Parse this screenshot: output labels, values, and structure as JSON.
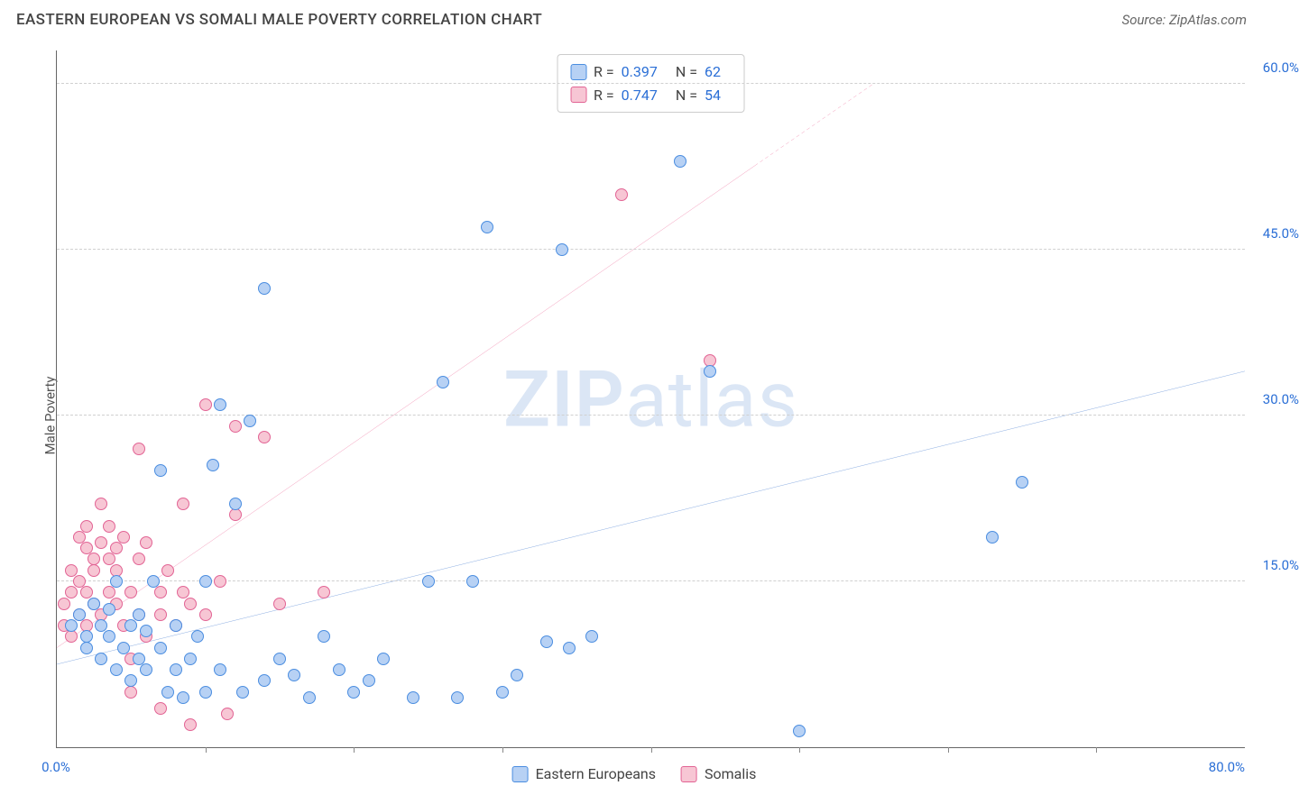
{
  "header": {
    "title": "EASTERN EUROPEAN VS SOMALI MALE POVERTY CORRELATION CHART",
    "source": "Source: ZipAtlas.com"
  },
  "axes": {
    "ylabel": "Male Poverty",
    "x_min": 0,
    "x_max": 80,
    "y_min": 0,
    "y_max": 63,
    "x_start_label": "0.0%",
    "x_end_label": "80.0%",
    "y_grid": [
      15,
      30,
      45,
      60
    ],
    "y_labels": [
      "15.0%",
      "30.0%",
      "45.0%",
      "60.0%"
    ],
    "x_ticks": [
      10,
      20,
      30,
      40,
      50,
      60,
      70
    ],
    "label_color": "#2b6fd6",
    "label_fontsize": 15
  },
  "watermark": {
    "text_bold": "ZIP",
    "text_light": "atlas",
    "color": "#dbe6f5"
  },
  "series": {
    "eastern_europeans": {
      "label": "Eastern Europeans",
      "color_fill": "#b7d1f4",
      "color_stroke": "#4a8de0",
      "marker_radius": 7,
      "stats": {
        "R": "0.397",
        "N": "62"
      },
      "trend": {
        "x1": 0,
        "y1": 7.5,
        "x2": 80,
        "y2": 34,
        "color": "#1d5fc7",
        "width": 2
      },
      "points": [
        [
          1,
          11
        ],
        [
          1.5,
          12
        ],
        [
          2,
          10
        ],
        [
          2,
          9
        ],
        [
          2.5,
          13
        ],
        [
          3,
          11
        ],
        [
          3,
          8
        ],
        [
          3.5,
          10
        ],
        [
          3.5,
          12.5
        ],
        [
          4,
          15
        ],
        [
          4,
          7
        ],
        [
          4.5,
          9
        ],
        [
          5,
          11
        ],
        [
          5,
          6
        ],
        [
          5.5,
          12
        ],
        [
          5.5,
          8
        ],
        [
          6,
          10.5
        ],
        [
          6,
          7
        ],
        [
          6.5,
          15
        ],
        [
          7,
          25
        ],
        [
          7,
          9
        ],
        [
          7.5,
          5
        ],
        [
          8,
          11
        ],
        [
          8,
          7
        ],
        [
          8.5,
          4.5
        ],
        [
          9,
          8
        ],
        [
          9.5,
          10
        ],
        [
          10,
          15
        ],
        [
          10,
          5
        ],
        [
          10.5,
          25.5
        ],
        [
          11,
          31
        ],
        [
          11,
          7
        ],
        [
          12,
          22
        ],
        [
          12.5,
          5
        ],
        [
          13,
          29.5
        ],
        [
          14,
          6
        ],
        [
          14,
          41.5
        ],
        [
          15,
          8
        ],
        [
          16,
          6.5
        ],
        [
          17,
          4.5
        ],
        [
          18,
          10
        ],
        [
          19,
          7
        ],
        [
          20,
          5
        ],
        [
          21,
          6
        ],
        [
          22,
          8
        ],
        [
          24,
          4.5
        ],
        [
          25,
          15
        ],
        [
          26,
          33
        ],
        [
          27,
          4.5
        ],
        [
          28,
          15
        ],
        [
          29,
          47
        ],
        [
          30,
          5
        ],
        [
          31,
          6.5
        ],
        [
          33,
          9.5
        ],
        [
          34,
          45
        ],
        [
          34.5,
          9
        ],
        [
          36,
          10
        ],
        [
          42,
          53
        ],
        [
          44,
          34
        ],
        [
          50,
          1.5
        ],
        [
          63,
          19
        ],
        [
          65,
          24
        ]
      ]
    },
    "somalis": {
      "label": "Somalis",
      "color_fill": "#f7c6d4",
      "color_stroke": "#e26394",
      "marker_radius": 7,
      "stats": {
        "R": "0.747",
        "N": "54"
      },
      "trend": {
        "x1": 0,
        "y1": 9,
        "x2": 55,
        "y2": 60,
        "color": "#e83e7b",
        "width": 2,
        "dash_after_x": 47
      },
      "points": [
        [
          0.5,
          11
        ],
        [
          0.5,
          13
        ],
        [
          1,
          10
        ],
        [
          1,
          14
        ],
        [
          1,
          16
        ],
        [
          1.5,
          12
        ],
        [
          1.5,
          15
        ],
        [
          1.5,
          19
        ],
        [
          2,
          11
        ],
        [
          2,
          14
        ],
        [
          2,
          18
        ],
        [
          2,
          20
        ],
        [
          2.5,
          13
        ],
        [
          2.5,
          17
        ],
        [
          2.5,
          16
        ],
        [
          3,
          12
        ],
        [
          3,
          18.5
        ],
        [
          3,
          22
        ],
        [
          3.5,
          14
        ],
        [
          3.5,
          17
        ],
        [
          3.5,
          20
        ],
        [
          4,
          13
        ],
        [
          4,
          18
        ],
        [
          4,
          16
        ],
        [
          4.5,
          11
        ],
        [
          4.5,
          19
        ],
        [
          5,
          14
        ],
        [
          5,
          8
        ],
        [
          5,
          5
        ],
        [
          5.5,
          17
        ],
        [
          5.5,
          12
        ],
        [
          5.5,
          27
        ],
        [
          6,
          10
        ],
        [
          6,
          18.5
        ],
        [
          7,
          14
        ],
        [
          7,
          12
        ],
        [
          7,
          3.5
        ],
        [
          7.5,
          16
        ],
        [
          8,
          11
        ],
        [
          8.5,
          14
        ],
        [
          8.5,
          22
        ],
        [
          9,
          2
        ],
        [
          9,
          13
        ],
        [
          10,
          12
        ],
        [
          10,
          31
        ],
        [
          11,
          15
        ],
        [
          11.5,
          3
        ],
        [
          12,
          21
        ],
        [
          12,
          29
        ],
        [
          14,
          28
        ],
        [
          15,
          13
        ],
        [
          18,
          14
        ],
        [
          38,
          50
        ],
        [
          44,
          35
        ]
      ]
    }
  },
  "stats_box": {
    "R_label": "R =",
    "N_label": "N =",
    "value_color": "#2b6fd6"
  },
  "legend": {
    "label1": "Eastern Europeans",
    "label2": "Somalis"
  }
}
